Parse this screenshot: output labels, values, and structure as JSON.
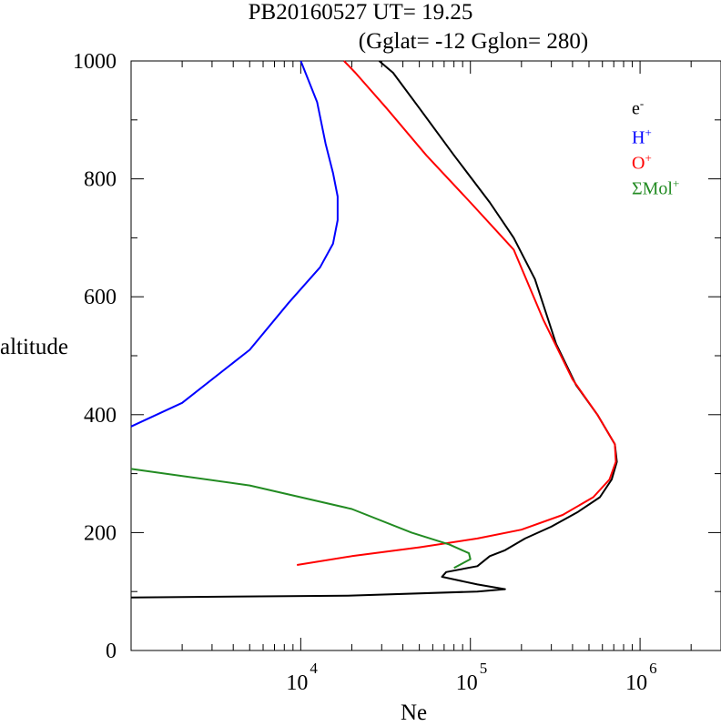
{
  "chart_data": {
    "type": "line",
    "title": "PB20160527   UT=  19.25",
    "subtitle": "(Gglat= -12   Gglon=  280)",
    "xlabel": "Ne",
    "ylabel": "altitude",
    "xscale": "log",
    "xlim": [
      1000,
      3000000
    ],
    "ylim": [
      0,
      1000
    ],
    "x_ticks": [
      "10",
      "10",
      "10"
    ],
    "x_tick_exponents": [
      "4",
      "5",
      "6"
    ],
    "y_ticks": [
      "0",
      "200",
      "400",
      "600",
      "800",
      "1000"
    ],
    "y_tick_values": [
      0,
      200,
      400,
      600,
      800,
      1000
    ],
    "legend_position": "top-right",
    "series": [
      {
        "name": "e",
        "sup": "-",
        "color": "#000000",
        "points": [
          [
            1000,
            90
          ],
          [
            19000,
            93
          ],
          [
            110000,
            100
          ],
          [
            160000,
            104
          ],
          [
            110000,
            112
          ],
          [
            68000,
            125
          ],
          [
            72000,
            133
          ],
          [
            110000,
            143
          ],
          [
            130000,
            160
          ],
          [
            160000,
            170
          ],
          [
            210000,
            190
          ],
          [
            300000,
            210
          ],
          [
            430000,
            235
          ],
          [
            580000,
            260
          ],
          [
            680000,
            290
          ],
          [
            730000,
            320
          ],
          [
            710000,
            350
          ],
          [
            560000,
            400
          ],
          [
            420000,
            450
          ],
          [
            320000,
            520
          ],
          [
            240000,
            630
          ],
          [
            180000,
            700
          ],
          [
            130000,
            760
          ],
          [
            80000,
            840
          ],
          [
            50000,
            920
          ],
          [
            35000,
            980
          ],
          [
            29000,
            1000
          ]
        ]
      },
      {
        "name": "H",
        "sup": "+",
        "color": "#0000ff",
        "points": [
          [
            1000,
            380
          ],
          [
            2000,
            420
          ],
          [
            5000,
            510
          ],
          [
            8500,
            590
          ],
          [
            13000,
            650
          ],
          [
            15500,
            690
          ],
          [
            16500,
            730
          ],
          [
            16500,
            770
          ],
          [
            15500,
            810
          ],
          [
            14000,
            860
          ],
          [
            12500,
            930
          ],
          [
            11000,
            970
          ],
          [
            10000,
            1000
          ]
        ]
      },
      {
        "name": "O",
        "sup": "+",
        "color": "#ff0000",
        "points": [
          [
            9500,
            145
          ],
          [
            20000,
            160
          ],
          [
            50000,
            175
          ],
          [
            110000,
            190
          ],
          [
            200000,
            205
          ],
          [
            350000,
            230
          ],
          [
            530000,
            260
          ],
          [
            660000,
            290
          ],
          [
            720000,
            320
          ],
          [
            710000,
            350
          ],
          [
            560000,
            400
          ],
          [
            400000,
            460
          ],
          [
            270000,
            560
          ],
          [
            180000,
            680
          ],
          [
            100000,
            760
          ],
          [
            55000,
            840
          ],
          [
            32000,
            920
          ],
          [
            21000,
            980
          ],
          [
            18000,
            1000
          ]
        ]
      },
      {
        "name": "ΣMol",
        "sup": "+",
        "color": "#228b22",
        "points": [
          [
            1000,
            308
          ],
          [
            5000,
            280
          ],
          [
            20000,
            240
          ],
          [
            45000,
            200
          ],
          [
            75000,
            180
          ],
          [
            98000,
            165
          ],
          [
            100000,
            155
          ],
          [
            80000,
            140
          ]
        ]
      }
    ]
  }
}
